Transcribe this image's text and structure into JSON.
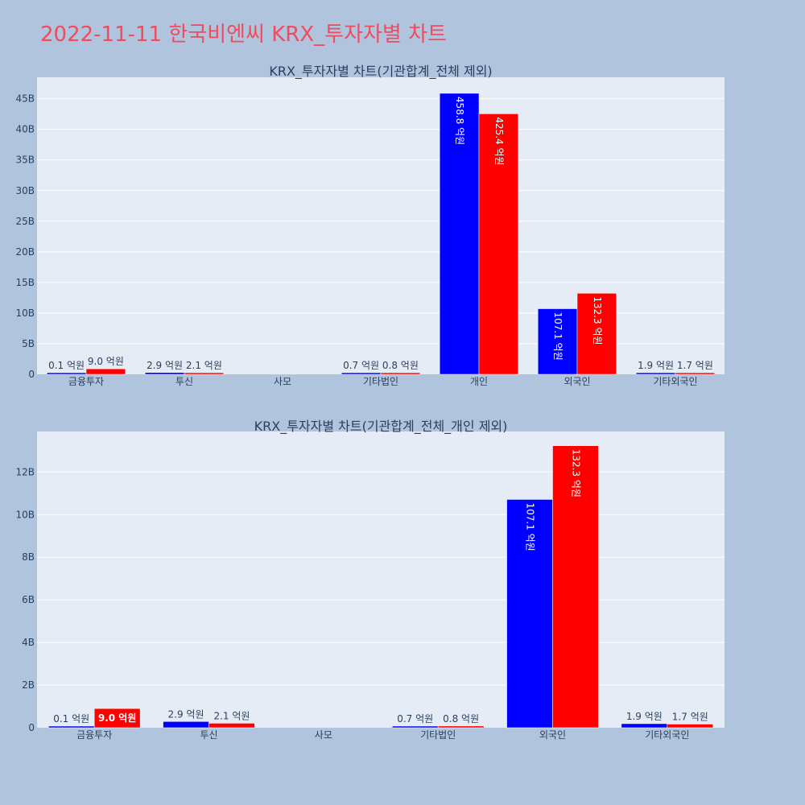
{
  "title": "2022-11-11 한국비엔씨 KRX_투자자별 차트",
  "chart_data": [
    {
      "type": "bar",
      "title": "KRX_투자자별 차트(기관합계_전체 제외)",
      "categories": [
        "금융투자",
        "투신",
        "사모",
        "기타법인",
        "개인",
        "외국인",
        "기타외국인"
      ],
      "ylim": [
        0,
        48.5
      ],
      "y_ticks": [
        0,
        5,
        10,
        15,
        20,
        25,
        30,
        35,
        40,
        45
      ],
      "tick_suffix": "B",
      "grid": true,
      "series": [
        {
          "color": "#0000ff",
          "values": [
            0.01,
            0.29,
            0,
            0.07,
            45.88,
            10.71,
            0.19
          ],
          "labels": [
            "0.1 억원",
            "2.9 억원",
            "",
            "0.7 억원",
            "458.8 억원",
            "107.1 억원",
            "1.9 억원"
          ]
        },
        {
          "color": "#ff0000",
          "values": [
            0.9,
            0.21,
            0,
            0.08,
            42.54,
            13.23,
            0.17
          ],
          "labels": [
            "9.0 억원",
            "2.1 억원",
            "",
            "0.8 억원",
            "425.4 억원",
            "132.3 억원",
            "1.7 억원"
          ]
        }
      ]
    },
    {
      "type": "bar",
      "title": "KRX_투자자별 차트(기관합계_전체_개인 제외)",
      "categories": [
        "금융투자",
        "투신",
        "사모",
        "기타법인",
        "외국인",
        "기타외국인"
      ],
      "ylim": [
        0,
        13.9
      ],
      "y_ticks": [
        0,
        2,
        4,
        6,
        8,
        10,
        12
      ],
      "tick_suffix": "B",
      "grid": true,
      "series": [
        {
          "color": "#0000ff",
          "values": [
            0.01,
            0.29,
            0,
            0.07,
            10.71,
            0.19
          ],
          "labels": [
            "0.1 억원",
            "2.9 억원",
            "",
            "0.7 억원",
            "107.1 억원",
            "1.9 억원"
          ]
        },
        {
          "color": "#ff0000",
          "values": [
            0.9,
            0.21,
            0,
            0.08,
            13.23,
            0.17
          ],
          "labels": [
            "9.0 억원",
            "2.1 억원",
            "",
            "0.8 억원",
            "132.3 억원",
            "1.7 억원"
          ]
        }
      ]
    }
  ]
}
